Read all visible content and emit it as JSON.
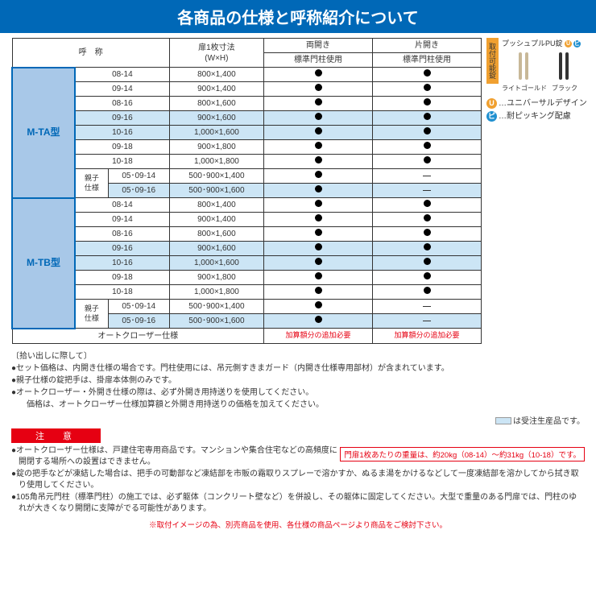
{
  "header": {
    "title": "各商品の仕様と呼称紹介について"
  },
  "table": {
    "headers": {
      "meisho": "呼　称",
      "dimensions": "扉1枚寸法\n(W×H)",
      "double": "両開き",
      "single": "片開き",
      "pillar": "標準門柱使用"
    },
    "models": [
      {
        "name": "M-TA型",
        "rows": [
          {
            "code": "08-14",
            "dim": "800×1,400",
            "d": "●",
            "s": "●"
          },
          {
            "code": "09-14",
            "dim": "900×1,400",
            "d": "●",
            "s": "●"
          },
          {
            "code": "08-16",
            "dim": "800×1,600",
            "d": "●",
            "s": "●"
          },
          {
            "code": "09-16",
            "dim": "900×1,600",
            "d": "●",
            "s": "●",
            "blue": true
          },
          {
            "code": "10-16",
            "dim": "1,000×1,600",
            "d": "●",
            "s": "●",
            "blue": true
          },
          {
            "code": "09-18",
            "dim": "900×1,800",
            "d": "●",
            "s": "●"
          },
          {
            "code": "10-18",
            "dim": "1,000×1,800",
            "d": "●",
            "s": "●"
          }
        ],
        "oyako_label": "親子\n仕様",
        "oyako": [
          {
            "code": "05･09-14",
            "dim": "500･900×1,400",
            "d": "●",
            "s": "—"
          },
          {
            "code": "05･09-16",
            "dim": "500･900×1,600",
            "d": "●",
            "s": "—",
            "blue": true
          }
        ]
      },
      {
        "name": "M-TB型",
        "rows": [
          {
            "code": "08-14",
            "dim": "800×1,400",
            "d": "●",
            "s": "●"
          },
          {
            "code": "09-14",
            "dim": "900×1,400",
            "d": "●",
            "s": "●"
          },
          {
            "code": "08-16",
            "dim": "800×1,600",
            "d": "●",
            "s": "●"
          },
          {
            "code": "09-16",
            "dim": "900×1,600",
            "d": "●",
            "s": "●",
            "blue": true
          },
          {
            "code": "10-16",
            "dim": "1,000×1,600",
            "d": "●",
            "s": "●",
            "blue": true
          },
          {
            "code": "09-18",
            "dim": "900×1,800",
            "d": "●",
            "s": "●"
          },
          {
            "code": "10-18",
            "dim": "1,000×1,800",
            "d": "●",
            "s": "●"
          }
        ],
        "oyako_label": "親子\n仕様",
        "oyako": [
          {
            "code": "05･09-14",
            "dim": "500･900×1,400",
            "d": "●",
            "s": "—"
          },
          {
            "code": "05･09-16",
            "dim": "500･900×1,600",
            "d": "●",
            "s": "—",
            "blue": true
          }
        ]
      }
    ],
    "auto_closer": {
      "label": "オートクローザー仕様",
      "fee": "加算額分の追加必要"
    }
  },
  "sidebar": {
    "vert_label": "取付可能錠",
    "handle_title": "プッシュプルPU錠",
    "handle1_label": "ライトゴールド",
    "handle2_label": "ブラック",
    "legend_u": "…ユニバーサルデザイン",
    "legend_p": "…耐ピッキング配慮",
    "u_char": "U",
    "p_char": "ピ"
  },
  "notes": {
    "title": "〔拾い出しに際して〕",
    "lines": [
      "●セット価格は、内開き仕様の場合です。門柱使用には、吊元側すきまガード（内開き仕様専用部材）が含まれています。",
      "●親子仕様の錠把手は、掛扉本体側のみです。",
      "●オートクローザー・外開き仕様の際は、必ず外開き用持送りを使用してください。\n　価格は、オートクローザー仕様加算額と外開き用持送りの価格を加えてください。"
    ],
    "legend_text": "は受注生産品です。"
  },
  "caution": {
    "title": "注　意",
    "weight_note": "門扉1枚あたりの重量は、約20kg（08-14）～約31kg（10-18）です。",
    "lines": [
      "●オートクローザー仕様は、戸建住宅専用商品です。マンションや集合住宅などの高頻度に開閉する場所への設置はできません。",
      "●錠の把手などが凍結した場合は、把手の可動部など凍結部を市販の霜取りスプレーで溶かすか、ぬるま湯をかけるなどして一度凍結部を溶かしてから拭き取り使用してください。",
      "●105角吊元門柱（標準門柱）の施工では、必ず躯体（コンクリート壁など）を併設し、その躯体に固定してください。大型で重量のある門扉では、門柱のゆれが大きくなり開閉に支障がでる可能性があります。"
    ]
  },
  "footnote": "※取付イメージの為、別売商品を使用、各仕様の商品ページより商品をご検討下さい。"
}
